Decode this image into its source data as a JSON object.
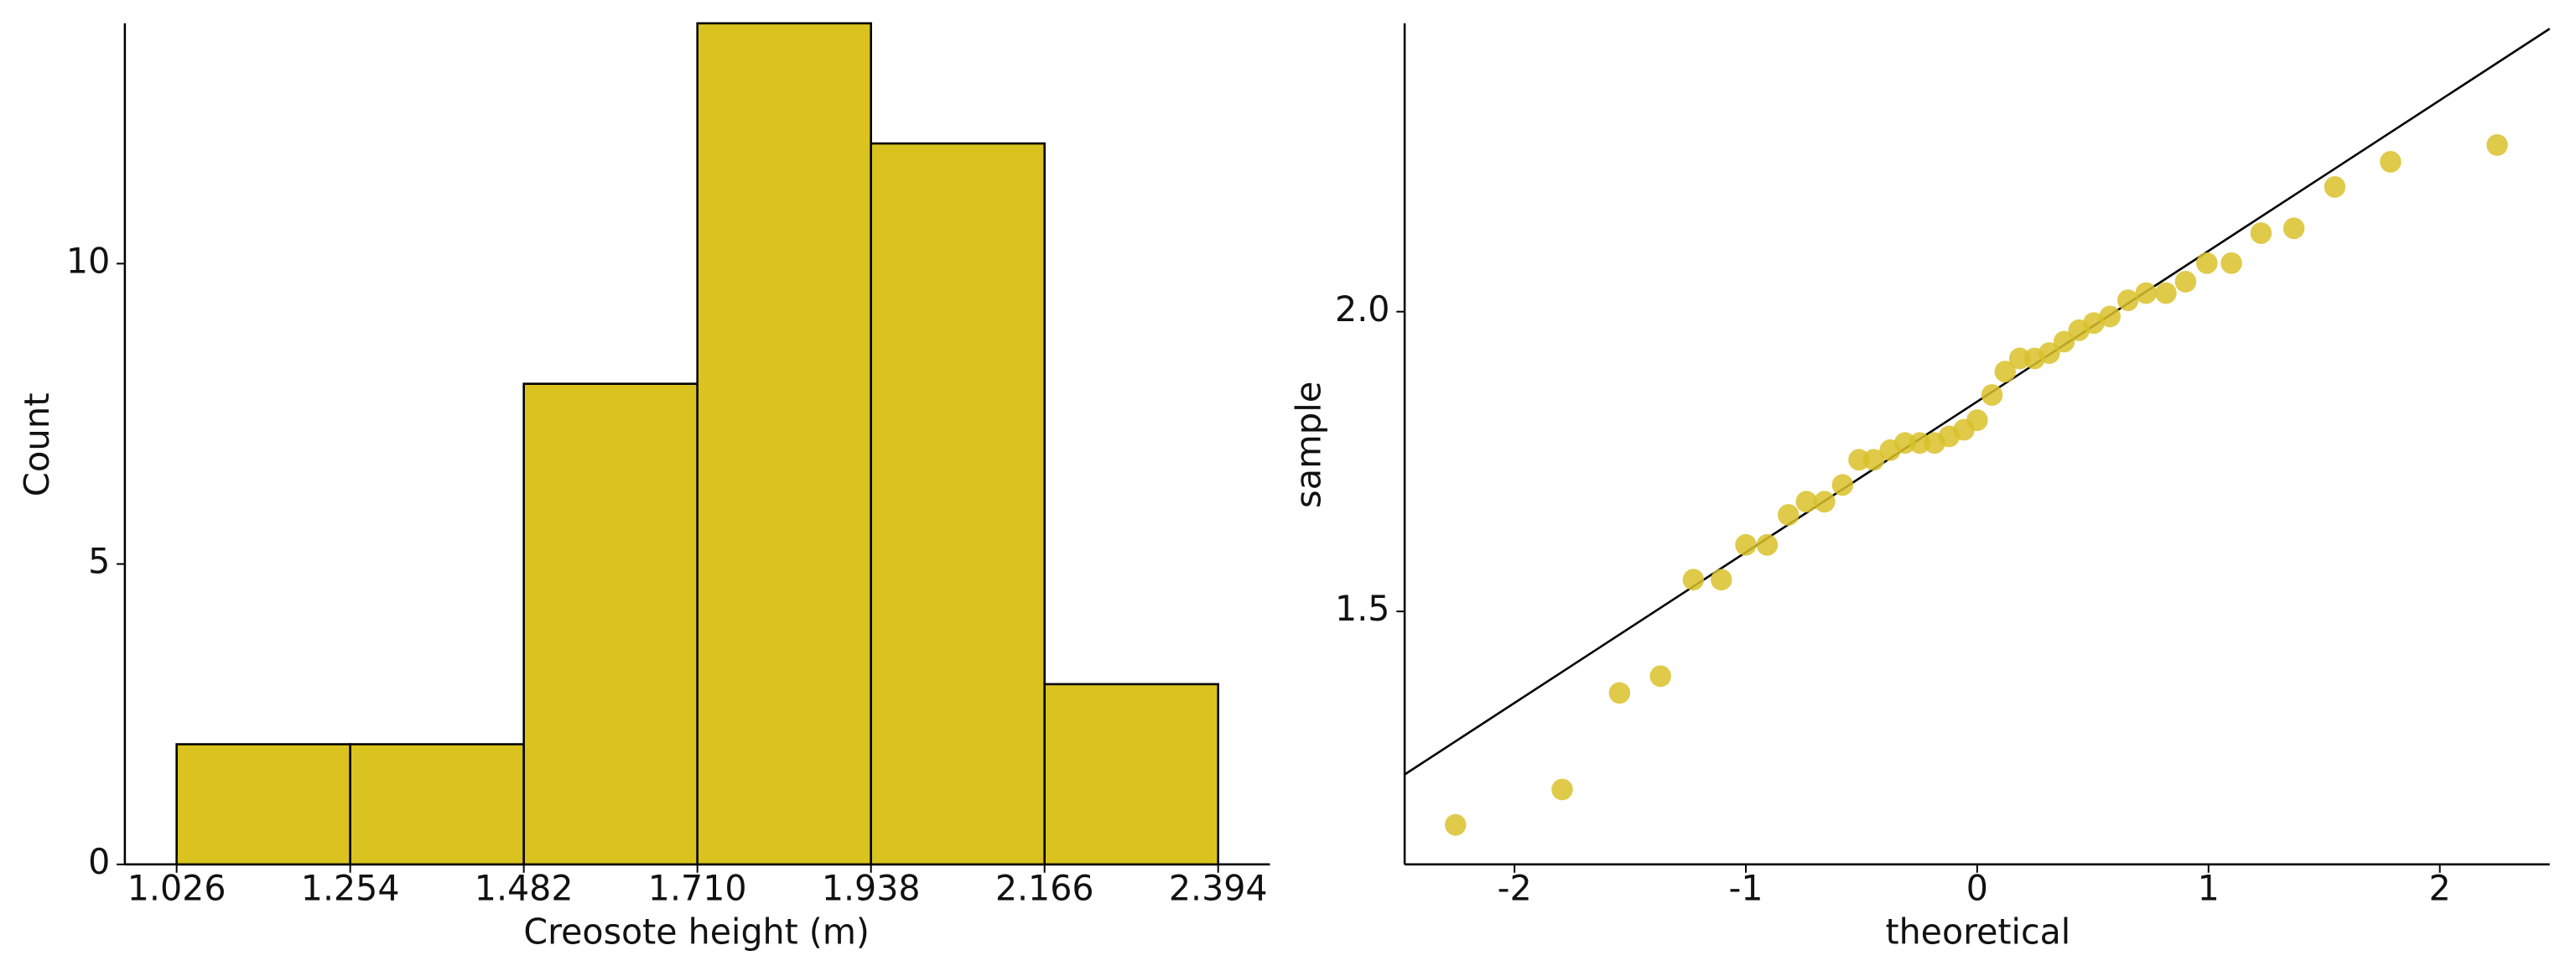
{
  "chart_data": [
    {
      "type": "histogram",
      "xlabel": "Creosote height (m)",
      "ylabel": "Count",
      "bins": [
        1.026,
        1.254,
        1.482,
        1.71,
        1.938,
        2.166,
        2.394
      ],
      "values": [
        2,
        2,
        8,
        14,
        12,
        3
      ],
      "color": "#dac31e",
      "edgecolor": "#000000",
      "xlim": [
        0.958,
        2.462
      ],
      "xticks": [
        1.026,
        1.254,
        1.482,
        {
          "value": 1.71,
          "label": "1.710"
        },
        1.938,
        2.166,
        2.394
      ],
      "ylim": [
        0,
        14
      ],
      "yticks": [
        0,
        5,
        10
      ]
    },
    {
      "type": "scatter",
      "xlabel": "theoretical",
      "ylabel": "sample",
      "color": "#d9c12a",
      "x": [
        -2.255,
        -1.794,
        -1.546,
        -1.369,
        -1.227,
        -1.106,
        -1.0,
        -0.908,
        -0.816,
        -0.738,
        -0.66,
        -0.582,
        -0.511,
        -0.447,
        -0.376,
        -0.312,
        -0.248,
        -0.184,
        -0.121,
        -0.057,
        0,
        0.064,
        0.121,
        0.184,
        0.248,
        0.312,
        0.376,
        0.44,
        0.504,
        0.574,
        0.652,
        0.73,
        0.816,
        0.901,
        0.993,
        1.099,
        1.227,
        1.369,
        1.546,
        1.787,
        2.248
      ],
      "values": [
        1.144,
        1.203,
        1.364,
        1.392,
        1.553,
        1.553,
        1.611,
        1.611,
        1.661,
        1.683,
        1.683,
        1.711,
        1.753,
        1.753,
        1.769,
        1.781,
        1.781,
        1.781,
        1.792,
        1.803,
        1.819,
        1.861,
        1.9,
        1.922,
        1.922,
        1.931,
        1.95,
        1.969,
        1.981,
        1.992,
        2.019,
        2.031,
        2.031,
        2.05,
        2.081,
        2.081,
        2.131,
        2.139,
        2.208,
        2.25,
        2.278
      ],
      "reference_line": {
        "x": [
          -2.475,
          2.475
        ],
        "y": [
          1.228,
          2.472
        ]
      },
      "xlim": [
        -2.475,
        2.475
      ],
      "xticks": [
        -2,
        -1,
        0,
        1,
        2
      ],
      "ylim": [
        1.078,
        2.481
      ],
      "yticks": [
        1.5,
        {
          "value": 2.0,
          "label": "2.0"
        }
      ]
    }
  ]
}
